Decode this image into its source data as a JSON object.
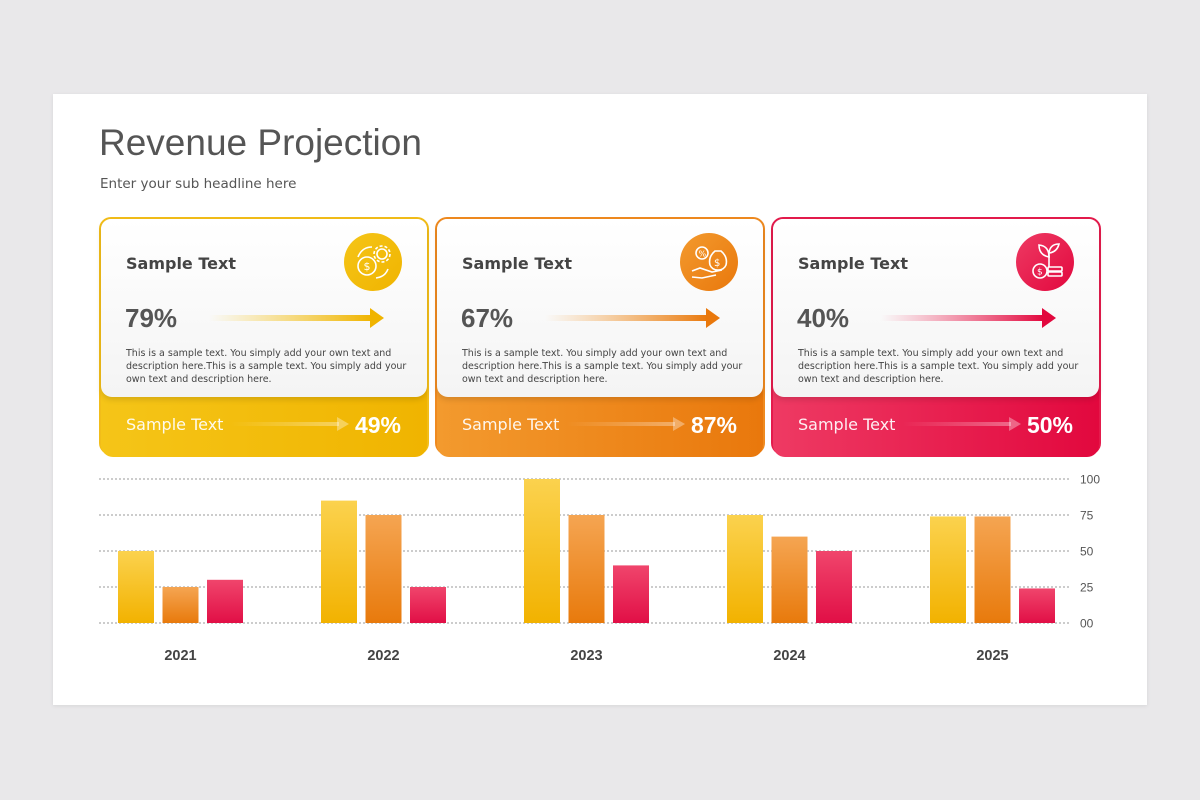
{
  "slide": {
    "title": "Revenue Projection",
    "subtitle": "Enter your sub headline here"
  },
  "cards": [
    {
      "heading": "Sample Text",
      "percent": "79%",
      "description": "This is a sample text. You simply add your own text and description here.This is a sample text. You simply add your own text and description here.",
      "footer_label": "Sample Text",
      "footer_percent": "49%",
      "icon": "gear-dollar-icon",
      "color_top": "#f5c518",
      "color_bottom": "#f0b400",
      "color_border": "#f2bd19"
    },
    {
      "heading": "Sample Text",
      "percent": "67%",
      "description": "This is a sample text. You simply add your own text and description here.This is a sample text. You simply add your own text and description here.",
      "footer_label": "Sample Text",
      "footer_percent": "87%",
      "icon": "hand-money-bag-icon",
      "color_top": "#f39a2e",
      "color_bottom": "#e9780c",
      "color_border": "#ef8a1f"
    },
    {
      "heading": "Sample Text",
      "percent": "40%",
      "description": "This is a sample text. You simply add your own text and description here.This is a sample text. You simply add your own text and description here.",
      "footer_label": "Sample Text",
      "footer_percent": "50%",
      "icon": "plant-coin-icon",
      "color_top": "#ee3a63",
      "color_bottom": "#e2083e",
      "color_border": "#e41b4c"
    }
  ],
  "chart_data": {
    "type": "bar",
    "categories": [
      "2021",
      "2022",
      "2023",
      "2024",
      "2025"
    ],
    "series": [
      {
        "values": [
          50,
          85,
          100,
          75,
          74
        ],
        "color_top": "#fbd24e",
        "color_bottom": "#f2b200"
      },
      {
        "values": [
          25,
          75,
          75,
          60,
          74
        ],
        "color_top": "#f5a552",
        "color_bottom": "#e87a0c"
      },
      {
        "values": [
          30,
          25,
          40,
          50,
          24
        ],
        "color_top": "#f0456c",
        "color_bottom": "#e10f46"
      }
    ],
    "ylim": [
      0,
      100
    ],
    "yticks": [
      "00",
      "25",
      "50",
      "75",
      "100"
    ],
    "ytick_values": [
      0,
      25,
      50,
      75,
      100
    ],
    "grid": true,
    "gridline_style": "dotted",
    "ylabel_position": "right"
  }
}
